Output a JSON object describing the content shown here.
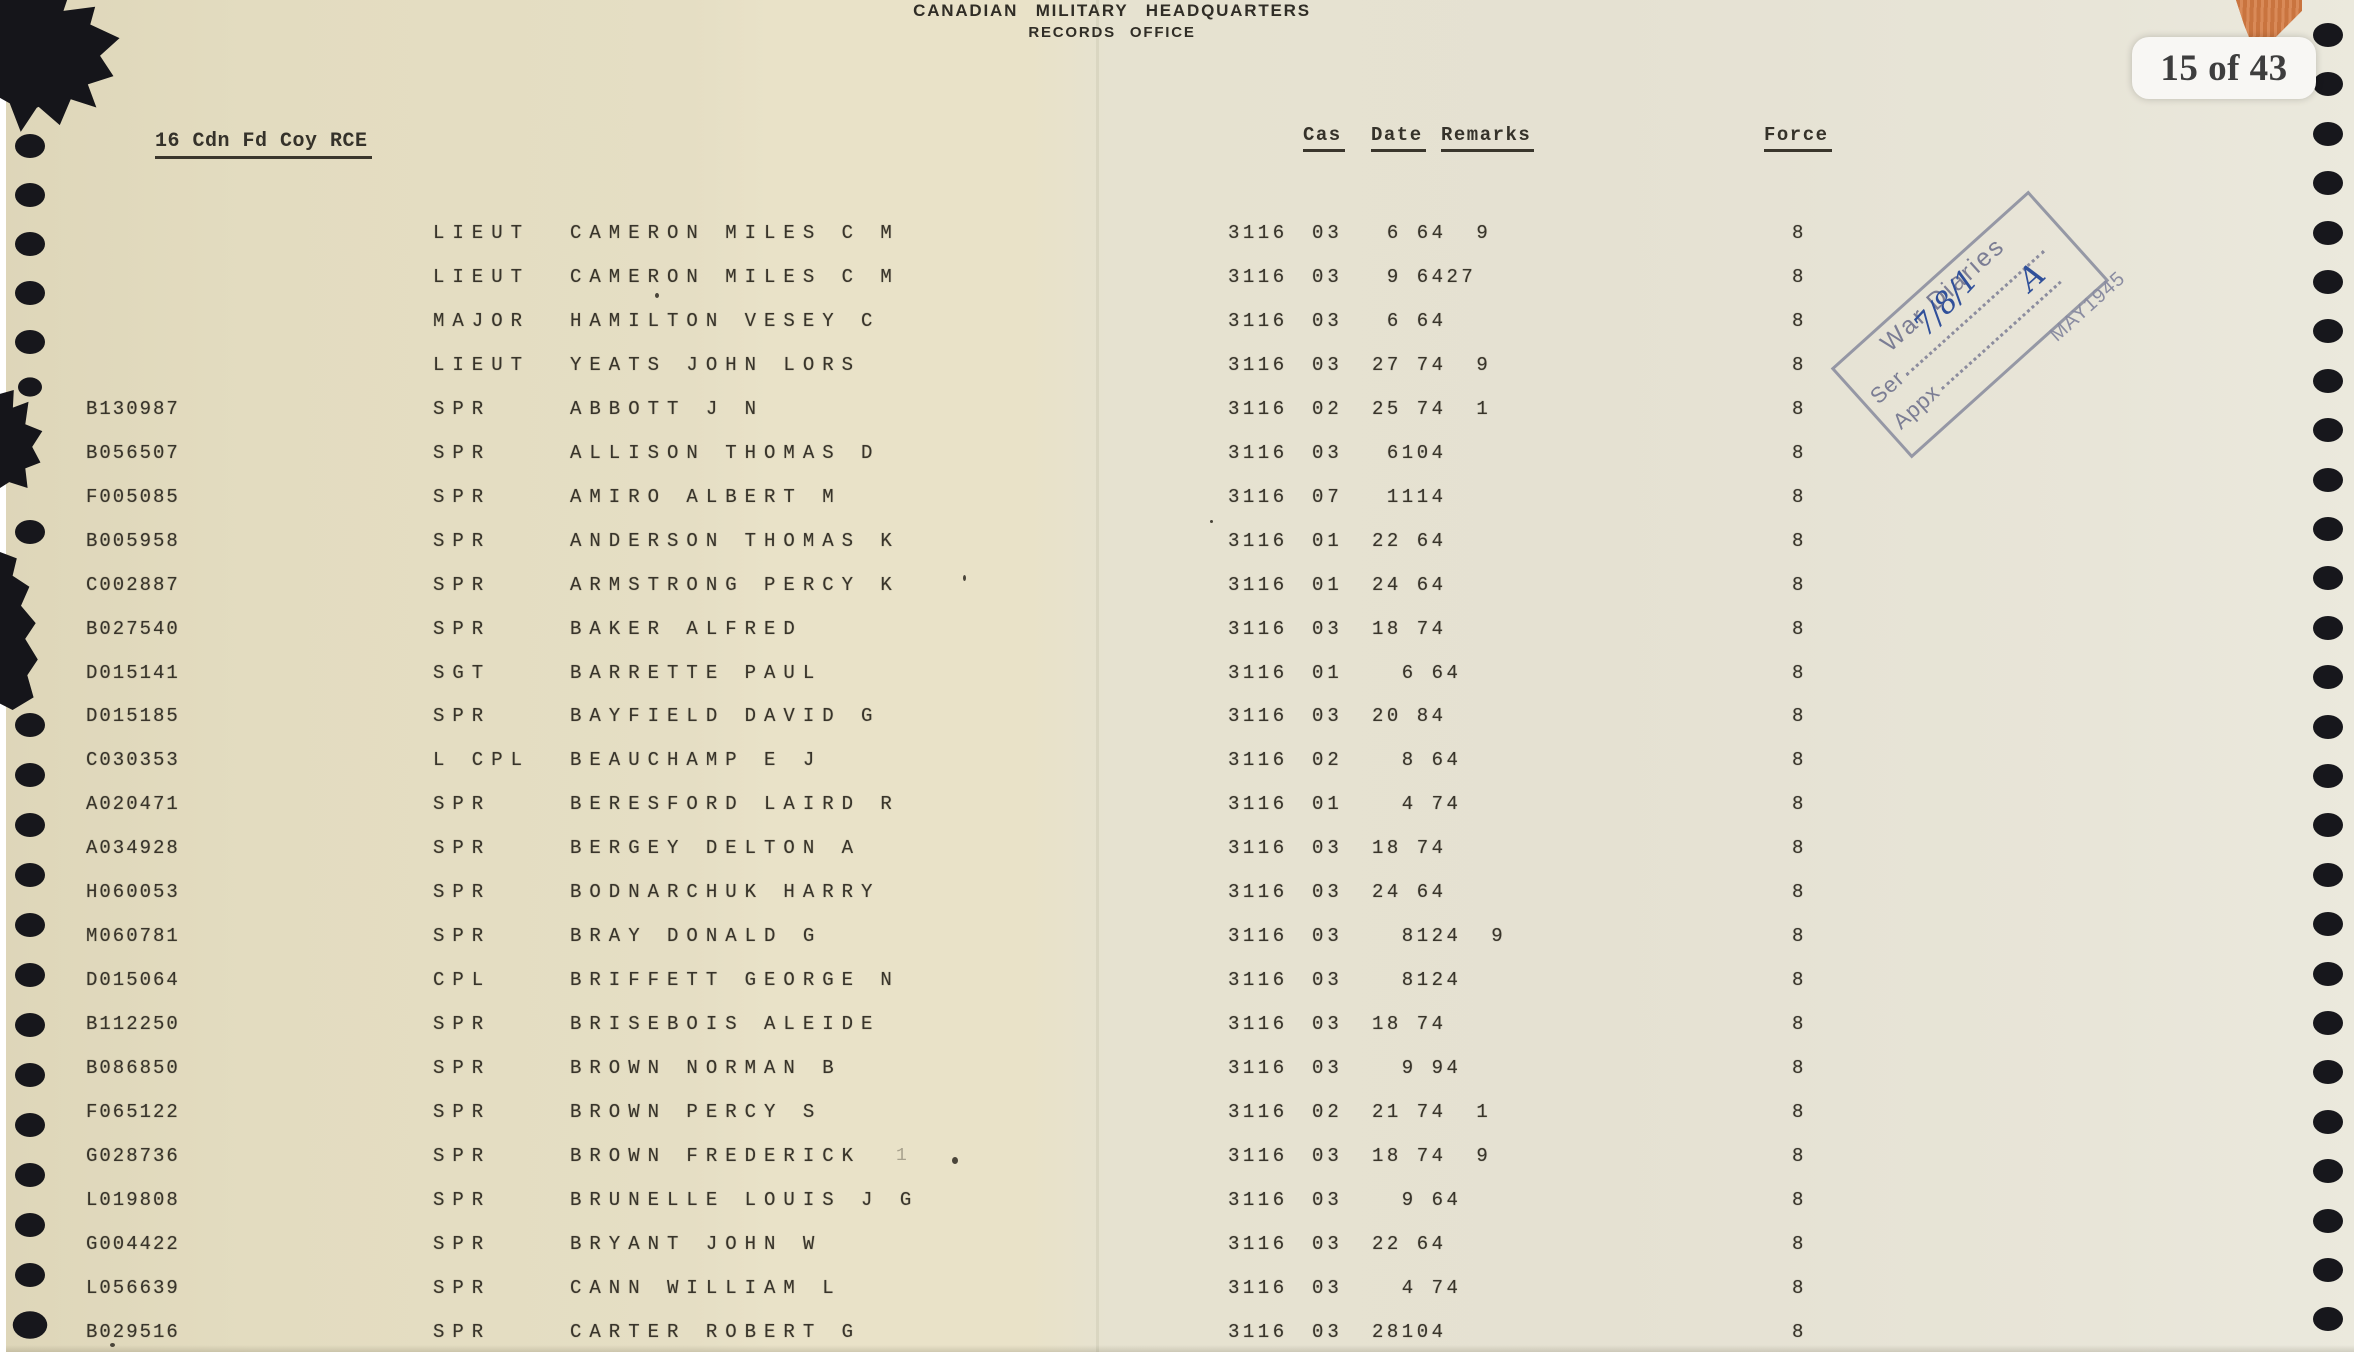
{
  "viewer": {
    "page_badge": "15 of 43"
  },
  "colors": {
    "paper_left": "#e4ddc2",
    "paper_right": "#e7e4d6",
    "ink": "#38342a",
    "stamp_gray": "#7b7d94",
    "stamp_ink_blue": "#30509a",
    "badge_bg": "#f8f7f4",
    "badge_text": "#3e3e3e",
    "tape_orange": "#cc7a46",
    "hole_black": "#17171c"
  },
  "document": {
    "org_line1": "CANADIAN MILITARY HEADQUARTERS",
    "org_line2": "RECORDS OFFICE",
    "unit_title": "16 Cdn Fd Coy RCE",
    "columns": {
      "cas": "Cas",
      "date": "Date",
      "remarks": "Remarks",
      "force": "Force"
    },
    "stamp": {
      "title": "War Diaries",
      "ser_label": "Ser",
      "ser_value": "7/8/1",
      "appx_label": "Appx",
      "appx_value": "A",
      "date": "MAY1945"
    },
    "rows": [
      {
        "svc": "",
        "rank": "LIEUT",
        "name": "CAMERON MILES C M",
        "list": "3116",
        "cas": "03",
        "date_remarks": " 6 64  9",
        "force": "8"
      },
      {
        "svc": "",
        "rank": "LIEUT",
        "name": "CAMERON MILES C M",
        "list": "3116",
        "cas": "03",
        "date_remarks": " 9 6427",
        "force": "8"
      },
      {
        "svc": "",
        "rank": "MAJOR",
        "name": "HAMILTON VESEY C",
        "list": "3116",
        "cas": "03",
        "date_remarks": " 6 64",
        "force": "8"
      },
      {
        "svc": "",
        "rank": "LIEUT",
        "name": "YEATS JOHN LORS",
        "list": "3116",
        "cas": "03",
        "date_remarks": "27 74  9",
        "force": "8"
      },
      {
        "svc": "B130987",
        "rank": "SPR",
        "name": "ABBOTT J N",
        "list": "3116",
        "cas": "02",
        "date_remarks": "25 74  1",
        "force": "8"
      },
      {
        "svc": "B056507",
        "rank": "SPR",
        "name": "ALLISON THOMAS D",
        "list": "3116",
        "cas": "03",
        "date_remarks": " 6104",
        "force": "8"
      },
      {
        "svc": "F005085",
        "rank": "SPR",
        "name": "AMIRO ALBERT M",
        "list": "3116",
        "cas": "07",
        "date_remarks": " 1114",
        "force": "8"
      },
      {
        "svc": "B005958",
        "rank": "SPR",
        "name": "ANDERSON THOMAS K",
        "list": "3116",
        "cas": "01",
        "date_remarks": "22 64",
        "force": "8"
      },
      {
        "svc": "C002887",
        "rank": "SPR",
        "name": "ARMSTRONG PERCY K",
        "list": "3116",
        "cas": "01",
        "date_remarks": "24 64",
        "force": "8"
      },
      {
        "svc": "B027540",
        "rank": "SPR",
        "name": "BAKER ALFRED",
        "list": "3116",
        "cas": "03",
        "date_remarks": "18 74",
        "force": "8"
      },
      {
        "svc": "D015141",
        "rank": "SGT",
        "name": "BARRETTE PAUL",
        "list": "3116",
        "cas": "01",
        "date_remarks": "  6 64",
        "force": "8"
      },
      {
        "svc": "D015185",
        "rank": "SPR",
        "name": "BAYFIELD DAVID G",
        "list": "3116",
        "cas": "03",
        "date_remarks": "20 84",
        "force": "8"
      },
      {
        "svc": "C030353",
        "rank": "L CPL",
        "name": "BEAUCHAMP E J",
        "list": "3116",
        "cas": "02",
        "date_remarks": "  8 64",
        "force": "8"
      },
      {
        "svc": "A020471",
        "rank": "SPR",
        "name": "BERESFORD LAIRD R",
        "list": "3116",
        "cas": "01",
        "date_remarks": "  4 74",
        "force": "8"
      },
      {
        "svc": "A034928",
        "rank": "SPR",
        "name": "BERGEY DELTON A",
        "list": "3116",
        "cas": "03",
        "date_remarks": "18 74",
        "force": "8"
      },
      {
        "svc": "H060053",
        "rank": "SPR",
        "name": "BODNARCHUK HARRY",
        "list": "3116",
        "cas": "03",
        "date_remarks": "24 64",
        "force": "8"
      },
      {
        "svc": "M060781",
        "rank": "SPR",
        "name": "BRAY DONALD G",
        "list": "3116",
        "cas": "03",
        "date_remarks": "  8124  9",
        "force": "8"
      },
      {
        "svc": "D015064",
        "rank": "CPL",
        "name": "BRIFFETT GEORGE N",
        "list": "3116",
        "cas": "03",
        "date_remarks": "  8124",
        "force": "8"
      },
      {
        "svc": "B112250",
        "rank": "SPR",
        "name": "BRISEBOIS ALEIDE",
        "list": "3116",
        "cas": "03",
        "date_remarks": "18 74",
        "force": "8"
      },
      {
        "svc": "B086850",
        "rank": "SPR",
        "name": "BROWN NORMAN B",
        "list": "3116",
        "cas": "03",
        "date_remarks": "  9 94",
        "force": "8"
      },
      {
        "svc": "F065122",
        "rank": "SPR",
        "name": "BROWN PERCY S",
        "list": "3116",
        "cas": "02",
        "date_remarks": "21 74  1",
        "force": "8"
      },
      {
        "svc": "G028736",
        "rank": "SPR",
        "name": "BROWN FREDERICK",
        "list": "3116",
        "cas": "03",
        "date_remarks": "18 74  9",
        "force": "8"
      },
      {
        "svc": "L019808",
        "rank": "SPR",
        "name": "BRUNELLE LOUIS J G",
        "list": "3116",
        "cas": "03",
        "date_remarks": "  9 64",
        "force": "8"
      },
      {
        "svc": "G004422",
        "rank": "SPR",
        "name": "BRYANT JOHN W",
        "list": "3116",
        "cas": "03",
        "date_remarks": "22 64",
        "force": "8"
      },
      {
        "svc": "L056639",
        "rank": "SPR",
        "name": "CANN WILLIAM L",
        "list": "3116",
        "cas": "03",
        "date_remarks": "  4 74",
        "force": "8"
      },
      {
        "svc": "B029516",
        "rank": "SPR",
        "name": "CARTER ROBERT G",
        "list": "3116",
        "cas": "03",
        "date_remarks": "28104",
        "force": "8"
      }
    ]
  },
  "artifacts": {
    "stray_mark": "1"
  }
}
